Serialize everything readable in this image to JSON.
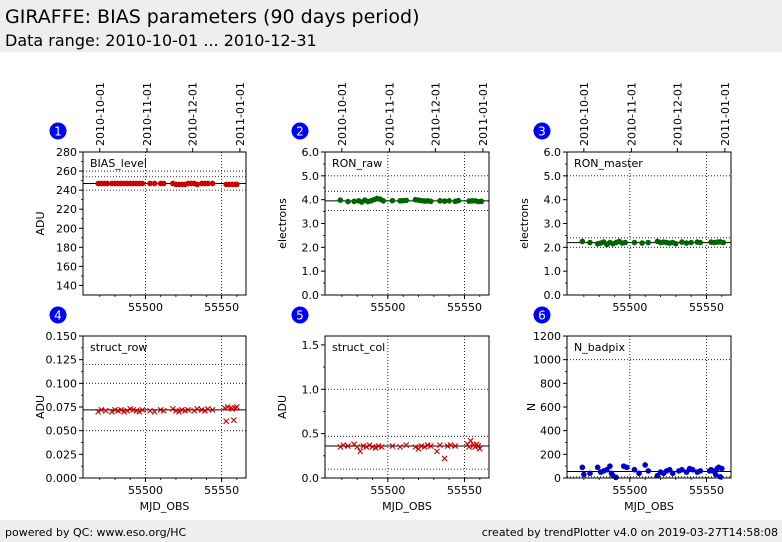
{
  "header": {
    "title": "GIRAFFE: BIAS parameters (90 days period)",
    "subtitle": "Data range: 2010-10-01 ... 2010-12-31"
  },
  "footer": {
    "left": "powered by QC: www.eso.org/HC",
    "right": "created by trendPlotter v4.0 on 2019-03-27T14:58:08"
  },
  "colors": {
    "red": "#cc0000",
    "green": "#006400",
    "blue": "#0000cc",
    "badge": "#0000ff"
  },
  "chart_data": [
    {
      "type": "scatter",
      "index": "1",
      "label": "BIAS_level",
      "ylabel": "ADU",
      "xlabel": "",
      "ylim": [
        130,
        280
      ],
      "yticks": [
        140,
        160,
        180,
        200,
        220,
        240,
        260,
        280
      ],
      "ytick_labels": [
        "140",
        "160",
        "180",
        "200",
        "220",
        "240",
        "260",
        "280"
      ],
      "xlim": [
        55459,
        55566
      ],
      "xticks": [
        55500,
        55550
      ],
      "xtick_labels": [
        "55500",
        "55550"
      ],
      "date_ticks": [
        {
          "x": 55470,
          "label": "2010-10-01"
        },
        {
          "x": 55501,
          "label": "2010-11-01"
        },
        {
          "x": 55531,
          "label": "2010-12-01"
        },
        {
          "x": 55562,
          "label": "2011-01-01"
        }
      ],
      "ref_line": 247,
      "upper_limit": 254,
      "lower_limit": 240,
      "hgrid": [
        260
      ],
      "color": "red",
      "marker": "circle",
      "series": [
        {
          "x": [
            55469,
            55471,
            55473,
            55475,
            55478,
            55480,
            55482,
            55484,
            55486,
            55488,
            55490,
            55492,
            55494,
            55496,
            55498,
            55503,
            55506,
            55510,
            55512,
            55518,
            55520,
            55522,
            55524,
            55526,
            55528,
            55530,
            55532,
            55534,
            55537,
            55539,
            55541,
            55544,
            55553,
            55555,
            55557,
            55559,
            55560
          ],
          "y": [
            247,
            247,
            247,
            247,
            247,
            247,
            247,
            247,
            247,
            247,
            247,
            247,
            247,
            247,
            247,
            247,
            247,
            247,
            247,
            247,
            246,
            246,
            246,
            246,
            247,
            247,
            247,
            246,
            247,
            247,
            247,
            247,
            246,
            246,
            246,
            246,
            246
          ]
        }
      ]
    },
    {
      "type": "scatter",
      "index": "2",
      "label": "RON_raw",
      "ylabel": "electrons",
      "xlabel": "",
      "ylim": [
        0.0,
        6.0
      ],
      "yticks": [
        0,
        1,
        2,
        3,
        4,
        5,
        6
      ],
      "ytick_labels": [
        "0.0",
        "1.0",
        "2.0",
        "3.0",
        "4.0",
        "5.0",
        "6.0"
      ],
      "xlim": [
        55459,
        55566
      ],
      "xticks": [
        55500,
        55550
      ],
      "xtick_labels": [
        "55500",
        "55550"
      ],
      "date_ticks": [
        {
          "x": 55470,
          "label": "2010-10-01"
        },
        {
          "x": 55501,
          "label": "2010-11-01"
        },
        {
          "x": 55531,
          "label": "2010-12-01"
        },
        {
          "x": 55562,
          "label": "2011-01-01"
        }
      ],
      "ref_line": 3.95,
      "upper_limit": 4.35,
      "lower_limit": 3.55,
      "hgrid": [
        5.0
      ],
      "color": "green",
      "marker": "circle",
      "series": [
        {
          "x": [
            55469,
            55474,
            55478,
            55481,
            55483,
            55485,
            55487,
            55489,
            55491,
            55493,
            55495,
            55497,
            55503,
            55508,
            55510,
            55512,
            55518,
            55520,
            55522,
            55524,
            55526,
            55528,
            55534,
            55537,
            55540,
            55544,
            55546,
            55553,
            55555,
            55557,
            55559,
            55561
          ],
          "y": [
            3.98,
            3.92,
            3.93,
            3.95,
            3.9,
            3.98,
            3.92,
            3.95,
            4.0,
            4.05,
            4.02,
            3.95,
            3.96,
            3.95,
            3.96,
            3.97,
            4.0,
            3.98,
            3.96,
            3.94,
            3.95,
            3.93,
            3.95,
            3.94,
            3.95,
            3.93,
            3.96,
            3.94,
            3.95,
            3.95,
            3.92,
            3.93
          ]
        }
      ]
    },
    {
      "type": "scatter",
      "index": "3",
      "label": "RON_master",
      "ylabel": "electrons",
      "xlabel": "",
      "ylim": [
        0.0,
        6.0
      ],
      "yticks": [
        0,
        1,
        2,
        3,
        4,
        5,
        6
      ],
      "ytick_labels": [
        "0.0",
        "1.0",
        "2.0",
        "3.0",
        "4.0",
        "5.0",
        "6.0"
      ],
      "xlim": [
        55459,
        55566
      ],
      "xticks": [
        55500,
        55550
      ],
      "xtick_labels": [
        "55500",
        "55550"
      ],
      "date_ticks": [
        {
          "x": 55470,
          "label": "2010-10-01"
        },
        {
          "x": 55501,
          "label": "2010-11-01"
        },
        {
          "x": 55531,
          "label": "2010-12-01"
        },
        {
          "x": 55562,
          "label": "2011-01-01"
        }
      ],
      "ref_line": 2.2,
      "upper_limit": 2.4,
      "lower_limit": 2.0,
      "hgrid": [
        5.0
      ],
      "color": "green",
      "marker": "circle",
      "series": [
        {
          "x": [
            55469,
            55474,
            55479,
            55481,
            55483,
            55485,
            55487,
            55489,
            55491,
            55493,
            55495,
            55497,
            55503,
            55508,
            55512,
            55518,
            55520,
            55522,
            55524,
            55526,
            55528,
            55530,
            55534,
            55537,
            55540,
            55544,
            55546,
            55553,
            55555,
            55557,
            55559,
            55561
          ],
          "y": [
            2.25,
            2.2,
            2.15,
            2.18,
            2.22,
            2.12,
            2.2,
            2.15,
            2.2,
            2.25,
            2.18,
            2.2,
            2.2,
            2.18,
            2.2,
            2.25,
            2.2,
            2.22,
            2.2,
            2.18,
            2.2,
            2.15,
            2.22,
            2.18,
            2.2,
            2.22,
            2.2,
            2.22,
            2.2,
            2.22,
            2.23,
            2.2
          ]
        }
      ]
    },
    {
      "type": "scatter",
      "index": "4",
      "label": "struct_row",
      "ylabel": "ADU",
      "xlabel": "MJD_OBS",
      "ylim": [
        0.0,
        0.15
      ],
      "yticks": [
        0,
        0.025,
        0.05,
        0.075,
        0.1,
        0.125,
        0.15
      ],
      "ytick_labels": [
        "0.000",
        "0.025",
        "0.050",
        "0.075",
        "0.100",
        "0.125",
        "0.150"
      ],
      "xlim": [
        55459,
        55566
      ],
      "xticks": [
        55500,
        55550
      ],
      "xtick_labels": [
        "55500",
        "55550"
      ],
      "date_ticks": [],
      "ref_line": 0.072,
      "upper_limit": 0.12,
      "lower_limit": 0.05,
      "hgrid": [
        0.1
      ],
      "color": "red",
      "marker": "cross",
      "series": [
        {
          "x": [
            55469,
            55471,
            55474,
            55478,
            55480,
            55482,
            55484,
            55486,
            55488,
            55490,
            55492,
            55494,
            55496,
            55498,
            55503,
            55506,
            55510,
            55512,
            55518,
            55520,
            55522,
            55524,
            55526,
            55528,
            55532,
            55534,
            55537,
            55539,
            55541,
            55544,
            55552,
            55553,
            55554,
            55556,
            55557,
            55558,
            55559,
            55560
          ],
          "y": [
            0.07,
            0.072,
            0.071,
            0.07,
            0.072,
            0.071,
            0.072,
            0.07,
            0.071,
            0.073,
            0.072,
            0.071,
            0.07,
            0.072,
            0.071,
            0.07,
            0.072,
            0.071,
            0.073,
            0.071,
            0.07,
            0.072,
            0.071,
            0.072,
            0.071,
            0.073,
            0.072,
            0.071,
            0.073,
            0.072,
            0.074,
            0.06,
            0.075,
            0.074,
            0.073,
            0.061,
            0.074,
            0.075
          ]
        }
      ]
    },
    {
      "type": "scatter",
      "index": "5",
      "label": "struct_col",
      "ylabel": "ADU",
      "xlabel": "MJD_OBS",
      "ylim": [
        0.0,
        1.6
      ],
      "yticks": [
        0,
        0.5,
        1.0,
        1.5
      ],
      "ytick_labels": [
        "0.0",
        "0.5",
        "1.0",
        "1.5"
      ],
      "xlim": [
        55459,
        55566
      ],
      "xticks": [
        55500,
        55550
      ],
      "xtick_labels": [
        "55500",
        "55550"
      ],
      "date_ticks": [],
      "ref_line": 0.36,
      "upper_limit": 0.47,
      "lower_limit": 0.1,
      "hgrid": [
        1.0
      ],
      "color": "red",
      "marker": "cross",
      "series": [
        {
          "x": [
            55469,
            55471,
            55474,
            55478,
            55480,
            55482,
            55484,
            55486,
            55488,
            55490,
            55492,
            55494,
            55496,
            55503,
            55508,
            55512,
            55518,
            55520,
            55522,
            55524,
            55526,
            55528,
            55532,
            55534,
            55537,
            55539,
            55541,
            55544,
            55552,
            55553,
            55554,
            55556,
            55557,
            55558,
            55559,
            55560
          ],
          "y": [
            0.35,
            0.37,
            0.36,
            0.38,
            0.35,
            0.3,
            0.36,
            0.35,
            0.37,
            0.35,
            0.34,
            0.36,
            0.35,
            0.36,
            0.35,
            0.37,
            0.35,
            0.33,
            0.36,
            0.35,
            0.37,
            0.36,
            0.3,
            0.37,
            0.22,
            0.36,
            0.37,
            0.36,
            0.38,
            0.35,
            0.42,
            0.37,
            0.35,
            0.38,
            0.36,
            0.33
          ]
        }
      ]
    },
    {
      "type": "scatter",
      "index": "6",
      "label": "N_badpix",
      "ylabel": "N",
      "xlabel": "MJD_OBS",
      "ylim": [
        0,
        1200
      ],
      "yticks": [
        0,
        200,
        400,
        600,
        800,
        1000,
        1200
      ],
      "ytick_labels": [
        "0",
        "200",
        "400",
        "600",
        "800",
        "1000",
        "1200"
      ],
      "xlim": [
        55459,
        55566
      ],
      "xticks": [
        55500,
        55550
      ],
      "xtick_labels": [
        "55500",
        "55550"
      ],
      "date_ticks": [],
      "ref_line": 55,
      "upper_limit": null,
      "lower_limit": 10,
      "hgrid": [
        1000
      ],
      "color": "blue",
      "marker": "circle",
      "series": [
        {
          "x": [
            55469,
            55470,
            55474,
            55479,
            55481,
            55483,
            55485,
            55487,
            55488,
            55489,
            55491,
            55496,
            55498,
            55503,
            55506,
            55510,
            55512,
            55518,
            55520,
            55522,
            55524,
            55526,
            55528,
            55532,
            55534,
            55537,
            55539,
            55541,
            55544,
            55546,
            55552,
            55553,
            55554,
            55556,
            55557,
            55558,
            55559,
            55560
          ],
          "y": [
            90,
            30,
            40,
            90,
            50,
            60,
            70,
            100,
            40,
            20,
            5,
            100,
            90,
            70,
            40,
            110,
            60,
            20,
            50,
            40,
            60,
            70,
            40,
            60,
            70,
            50,
            80,
            70,
            50,
            60,
            60,
            70,
            60,
            30,
            80,
            90,
            10,
            80
          ]
        }
      ]
    }
  ]
}
